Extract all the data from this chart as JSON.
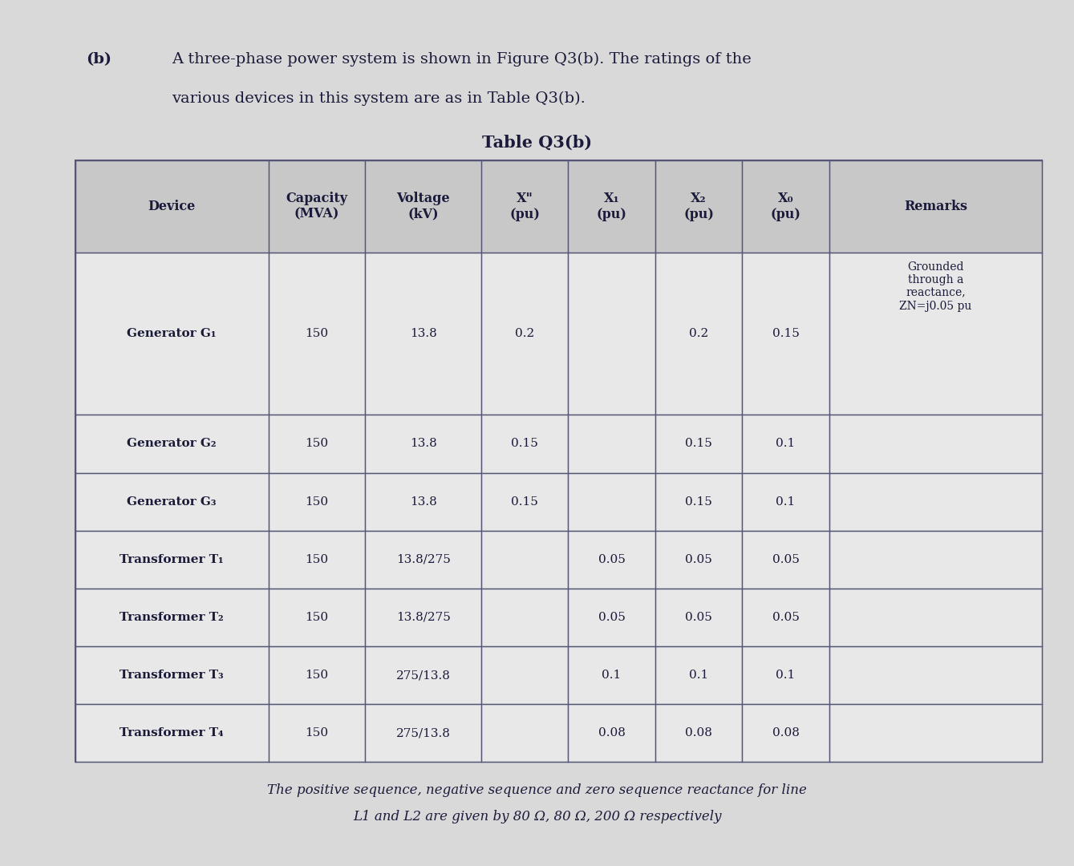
{
  "title_part_b": "(b)",
  "title_text1": "A three-phase power system is shown in Figure Q3(b). The ratings of the",
  "title_text2": "various devices in this system are as in Table Q3(b).",
  "table_title": "Table Q3(b)",
  "header_row": [
    "Device",
    "Capacity\n(MVA)",
    "Voltage\n(kV)",
    "X\"\n(pu)",
    "X₁\n(pu)",
    "X₂\n(pu)",
    "X₀\n(pu)",
    "Remarks"
  ],
  "rows": [
    [
      "Generator G₁",
      "150",
      "13.8",
      "0.2",
      "",
      "0.2",
      "0.15",
      "Grounded\nthrough a\nreactance,\nZN=j0.05 pu"
    ],
    [
      "Generator G₂",
      "150",
      "13.8",
      "0.15",
      "",
      "0.15",
      "0.1",
      ""
    ],
    [
      "Generator G₃",
      "150",
      "13.8",
      "0.15",
      "",
      "0.15",
      "0.1",
      ""
    ],
    [
      "Transformer T₁",
      "150",
      "13.8/275",
      "",
      "0.05",
      "0.05",
      "0.05",
      ""
    ],
    [
      "Transformer T₂",
      "150",
      "13.8/275",
      "",
      "0.05",
      "0.05",
      "0.05",
      ""
    ],
    [
      "Transformer T₃",
      "150",
      "275/13.8",
      "",
      "0.1",
      "0.1",
      "0.1",
      ""
    ],
    [
      "Transformer T₄",
      "150",
      "275/13.8",
      "",
      "0.08",
      "0.08",
      "0.08",
      ""
    ]
  ],
  "footer_text1": "The positive sequence, negative sequence and zero sequence reactance for line",
  "footer_text2": "L1 and L2 are given by 80 Ω, 80 Ω, 200 Ω respectively",
  "bg_color": "#d9d9d9",
  "table_bg": "#e8e8e8",
  "header_bg": "#c8c8c8",
  "border_color": "#555577",
  "text_color": "#1a1a3a",
  "title_color": "#1a1a3a"
}
